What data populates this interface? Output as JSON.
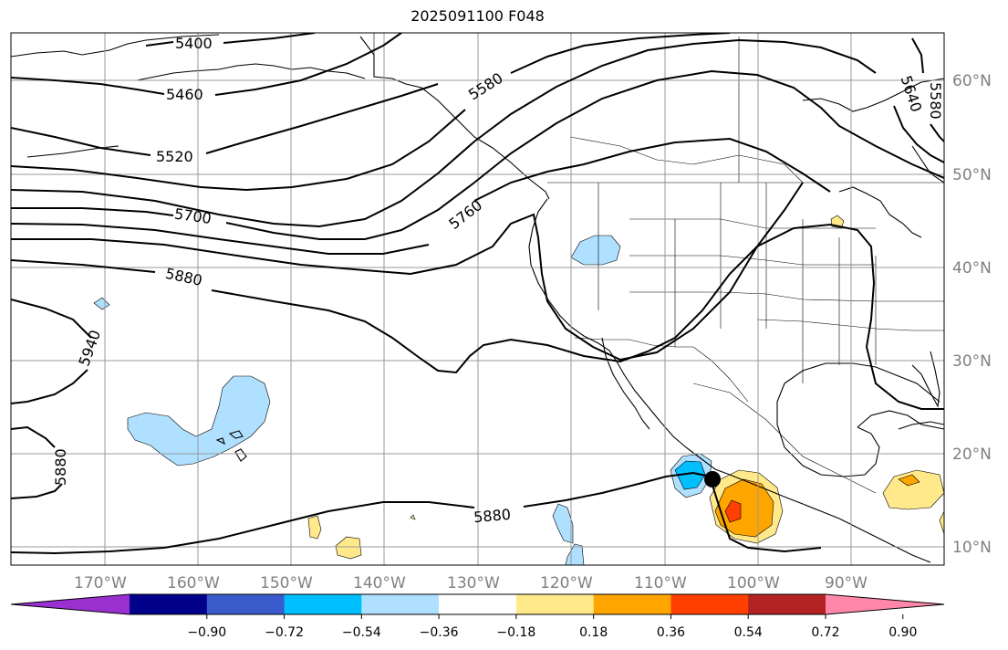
{
  "title": "2025091100 F048",
  "longitude_labels": [
    "170°W",
    "160°W",
    "150°W",
    "140°W",
    "130°W",
    "120°W",
    "110°W",
    "100°W",
    "90°W"
  ],
  "latitude_labels": [
    "10°N",
    "20°N",
    "30°N",
    "40°N",
    "50°N",
    "60°N"
  ],
  "contour_labels": {
    "c5400": "5400",
    "c5460": "5460",
    "c5520": "5520",
    "c5580": "5580",
    "c5640": "5640",
    "c5580b": "5580",
    "c5700": "5700",
    "c5760": "5760",
    "c5880": "5880",
    "c5880b": "5880",
    "c5880c": "5880",
    "c5940": "5940"
  },
  "colorbar": {
    "ticks": [
      "−0.90",
      "−0.72",
      "−0.54",
      "−0.36",
      "−0.18",
      "0.18",
      "0.36",
      "0.54",
      "0.72",
      "0.90"
    ],
    "colors": [
      "#9b30d0",
      "#00008b",
      "#3a5bcc",
      "#00bfff",
      "#b0e0ff",
      "#ffffff",
      "#ffe98a",
      "#ffa500",
      "#ff4000",
      "#b22222",
      "#ff88aa"
    ]
  },
  "colors": {
    "positive_light": "#ffe98a",
    "positive_mid": "#ffa500",
    "positive_strong": "#ff4000",
    "negative_light": "#b0e0ff",
    "negative_mid": "#00bfff",
    "contour": "#000000",
    "grid": "#999999",
    "tick_label": "#808080"
  },
  "storm_marker": {
    "icon": "filled-circle-marker",
    "lon": -105,
    "lat": 17
  }
}
